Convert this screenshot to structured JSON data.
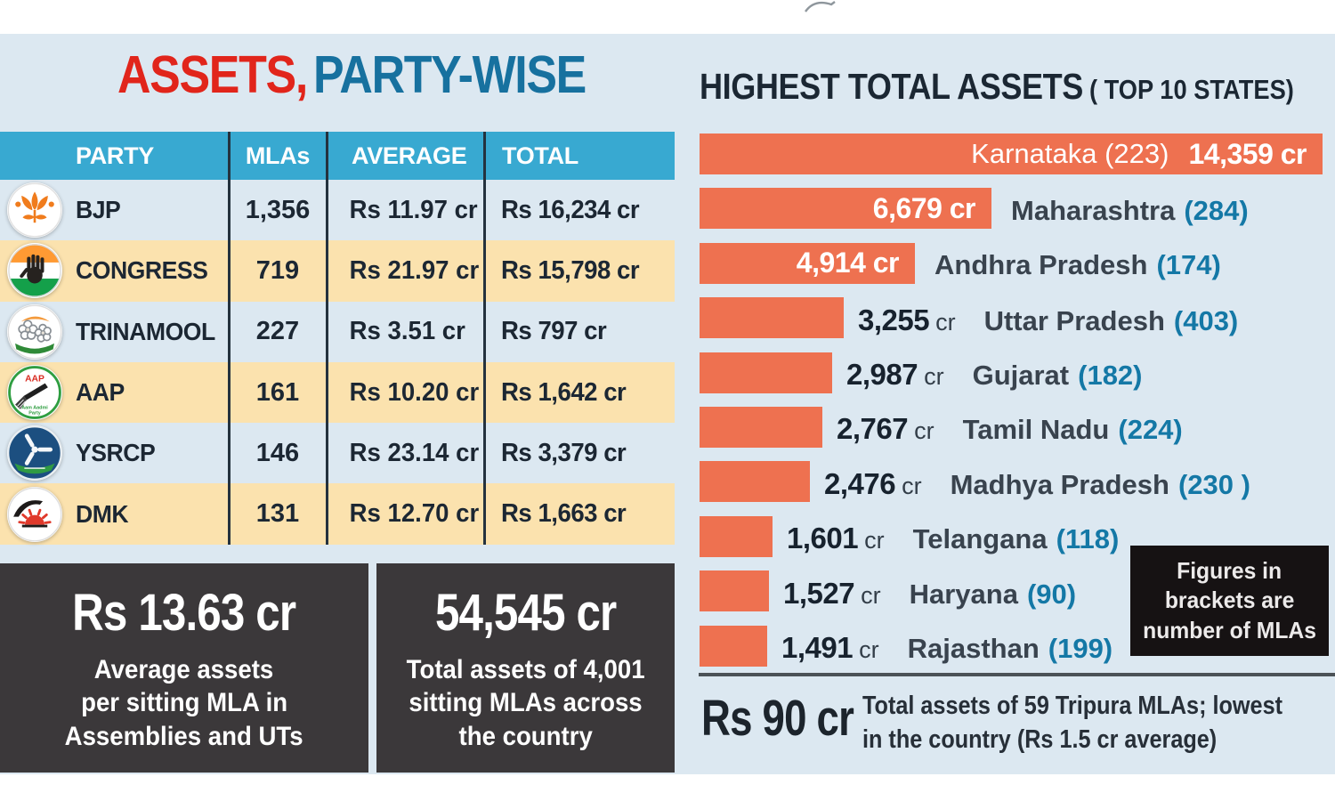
{
  "left_panel": {
    "title_red": "ASSETS,",
    "title_blue": "PARTY-WISE",
    "stat_boxes": [
      {
        "value": "Rs 13.63 cr",
        "lines": [
          "Average assets",
          "per sitting MLA in",
          "Assemblies and UTs"
        ]
      },
      {
        "value": "54,545 cr",
        "lines": [
          "Total assets of 4,001",
          "sitting MLAs across",
          "the country"
        ]
      }
    ]
  },
  "table": {
    "headers": [
      "PARTY",
      "MLAs",
      "AVERAGE",
      "TOTAL"
    ],
    "rows": [
      {
        "party": "BJP",
        "icon": "bjp-lotus-icon",
        "mlas": "1,356",
        "average": "Rs 11.97 cr",
        "total": "Rs 16,234 cr"
      },
      {
        "party": "CONGRESS",
        "icon": "congress-hand-icon",
        "mlas": "719",
        "average": "Rs 21.97 cr",
        "total": "Rs 15,798 cr"
      },
      {
        "party": "TRINAMOOL",
        "icon": "trinamool-flowers-icon",
        "mlas": "227",
        "average": "Rs 3.51 cr",
        "total": "Rs 797 cr"
      },
      {
        "party": "AAP",
        "icon": "aap-broom-icon",
        "mlas": "161",
        "average": "Rs 10.20 cr",
        "total": "Rs 1,642 cr"
      },
      {
        "party": "YSRCP",
        "icon": "ysrcp-fan-icon",
        "mlas": "146",
        "average": "Rs 23.14 cr",
        "total": "Rs 3,379 cr"
      },
      {
        "party": "DMK",
        "icon": "dmk-sun-icon",
        "mlas": "131",
        "average": "Rs 12.70 cr",
        "total": "Rs 1,663 cr"
      }
    ]
  },
  "right_panel": {
    "title": "HIGHEST TOTAL ASSETS",
    "subtitle": "( TOP 10 STATES)",
    "note_box_lines": [
      "Figures in",
      "brackets are",
      "number of MLAs"
    ],
    "footnote": {
      "value": "Rs 90 cr",
      "lines": [
        "Total assets of 59 Tripura MLAs; lowest",
        "in the country (Rs 1.5 cr average)"
      ]
    }
  },
  "chart_data": [
    {
      "type": "bar",
      "orientation": "horizontal",
      "title": "HIGHEST TOTAL ASSETS (TOP 10 STATES)",
      "unit": "cr",
      "xlim": [
        0,
        14359
      ],
      "legend": "none",
      "grid": false,
      "categories": [
        "Karnataka",
        "Maharashtra",
        "Andhra Pradesh",
        "Uttar Pradesh",
        "Gujarat",
        "Tamil Nadu",
        "Madhya Pradesh",
        "Telangana",
        "Haryana",
        "Rajasthan"
      ],
      "values": [
        14359,
        6679,
        4914,
        3255,
        2987,
        2767,
        2476,
        1601,
        1527,
        1491
      ],
      "mla_counts": [
        223,
        284,
        174,
        403,
        182,
        224,
        230,
        118,
        90,
        199
      ],
      "bars": [
        {
          "state": "Karnataka",
          "value": 14359,
          "value_label": "14,359 cr",
          "bracket": "(223)",
          "layout": "inside-full"
        },
        {
          "state": "Maharashtra",
          "value": 6679,
          "value_label": "6,679 cr",
          "bracket": "(284)",
          "layout": "inside-value"
        },
        {
          "state": "Andhra Pradesh",
          "value": 4914,
          "value_label": "4,914 cr",
          "bracket": "(174)",
          "layout": "inside-value"
        },
        {
          "state": "Uttar Pradesh",
          "value": 3255,
          "value_label": "3,255",
          "bracket": "(403)",
          "layout": "outside"
        },
        {
          "state": "Gujarat",
          "value": 2987,
          "value_label": "2,987",
          "bracket": "(182)",
          "layout": "outside"
        },
        {
          "state": "Tamil Nadu",
          "value": 2767,
          "value_label": "2,767",
          "bracket": "(224)",
          "layout": "outside"
        },
        {
          "state": "Madhya Pradesh",
          "value": 2476,
          "value_label": "2,476",
          "bracket": "(230 )",
          "layout": "outside"
        },
        {
          "state": "Telangana",
          "value": 1601,
          "value_label": "1,601",
          "bracket": "(118)",
          "layout": "outside"
        },
        {
          "state": "Haryana",
          "value": 1527,
          "value_label": "1,527",
          "bracket": "(90)",
          "layout": "outside"
        },
        {
          "state": "Rajasthan",
          "value": 1491,
          "value_label": "1,491",
          "bracket": "(199)",
          "layout": "outside"
        }
      ]
    },
    {
      "type": "table",
      "title": "ASSETS, PARTY-WISE",
      "columns": [
        "PARTY",
        "MLAs",
        "AVERAGE",
        "TOTAL"
      ],
      "rows": [
        [
          "BJP",
          "1,356",
          "Rs 11.97 cr",
          "Rs 16,234 cr"
        ],
        [
          "CONGRESS",
          "719",
          "Rs 21.97 cr",
          "Rs 15,798 cr"
        ],
        [
          "TRINAMOOL",
          "227",
          "Rs 3.51 cr",
          "Rs 797 cr"
        ],
        [
          "AAP",
          "161",
          "Rs 10.20 cr",
          "Rs 1,642 cr"
        ],
        [
          "YSRCP",
          "146",
          "Rs 23.14 cr",
          "Rs 3,379 cr"
        ],
        [
          "DMK",
          "131",
          "Rs 12.70 cr",
          "Rs 1,663 cr"
        ]
      ]
    }
  ],
  "colors": {
    "panel_bg": "#dce8f1",
    "header_blue": "#38a9d1",
    "cream": "#fbe2ae",
    "bar_orange": "#ee7150",
    "title_red": "#e1251b",
    "title_blue": "#17719f",
    "teal": "#1478a6",
    "dark_box": "#3b383a",
    "black_box": "#161213",
    "dark_text": "#1c2733",
    "state_text": "#39434e",
    "rule": "#4b5257"
  }
}
